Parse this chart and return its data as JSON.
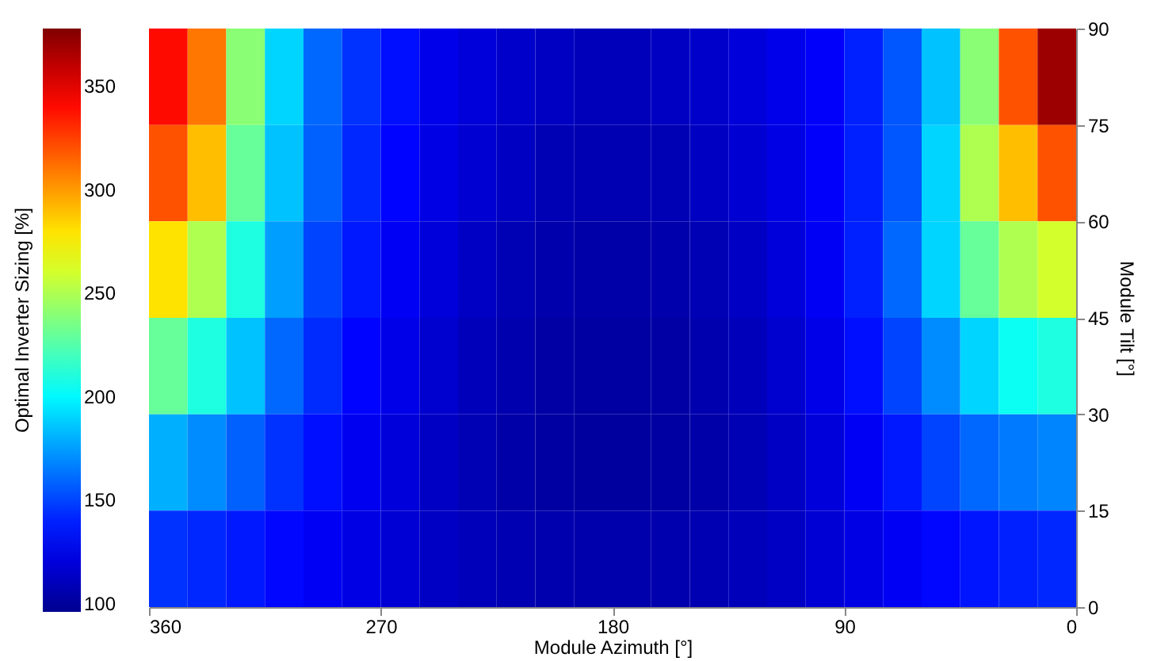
{
  "chart_data": {
    "type": "heatmap",
    "xlabel": "Module Azimuth [°]",
    "ylabel": "Module Tilt [°]",
    "clabel": "Optimal Inverter Sizing [%]",
    "x": [
      352.5,
      337.5,
      322.5,
      307.5,
      292.5,
      277.5,
      262.5,
      247.5,
      232.5,
      217.5,
      202.5,
      187.5,
      172.5,
      157.5,
      142.5,
      127.5,
      112.5,
      97.5,
      82.5,
      67.5,
      52.5,
      37.5,
      22.5,
      7.5
    ],
    "y": [
      82.5,
      67.5,
      52.5,
      37.5,
      22.5,
      7.5
    ],
    "cells": [
      [
        340,
        310,
        240,
        190,
        160,
        145,
        135,
        125,
        120,
        115,
        112,
        110,
        110,
        112,
        115,
        120,
        125,
        130,
        140,
        155,
        185,
        240,
        320,
        370
      ],
      [
        320,
        290,
        230,
        185,
        158,
        142,
        132,
        123,
        117,
        112,
        108,
        107,
        107,
        108,
        112,
        117,
        123,
        130,
        140,
        155,
        190,
        250,
        290,
        320
      ],
      [
        280,
        250,
        210,
        175,
        150,
        138,
        128,
        120,
        113,
        108,
        105,
        104,
        104,
        105,
        108,
        113,
        120,
        128,
        140,
        160,
        190,
        230,
        250,
        260
      ],
      [
        230,
        210,
        185,
        160,
        143,
        132,
        124,
        116,
        110,
        106,
        103,
        102,
        102,
        103,
        106,
        110,
        116,
        124,
        135,
        150,
        170,
        190,
        205,
        210
      ],
      [
        180,
        170,
        158,
        145,
        135,
        127,
        120,
        113,
        108,
        104,
        102,
        101,
        101,
        102,
        104,
        108,
        113,
        120,
        128,
        138,
        150,
        160,
        165,
        168
      ],
      [
        145,
        142,
        138,
        133,
        128,
        123,
        118,
        113,
        110,
        107,
        106,
        105,
        105,
        106,
        107,
        110,
        113,
        118,
        123,
        128,
        133,
        137,
        140,
        142
      ]
    ],
    "xlim": [
      360,
      0
    ],
    "xticks": [
      360,
      270,
      180,
      90,
      0
    ],
    "ylim": [
      0,
      90
    ],
    "yticks": [
      0,
      15,
      30,
      45,
      60,
      75,
      90
    ],
    "clim": [
      96,
      378
    ],
    "cticks": [
      100,
      150,
      200,
      250,
      300,
      350
    ]
  }
}
